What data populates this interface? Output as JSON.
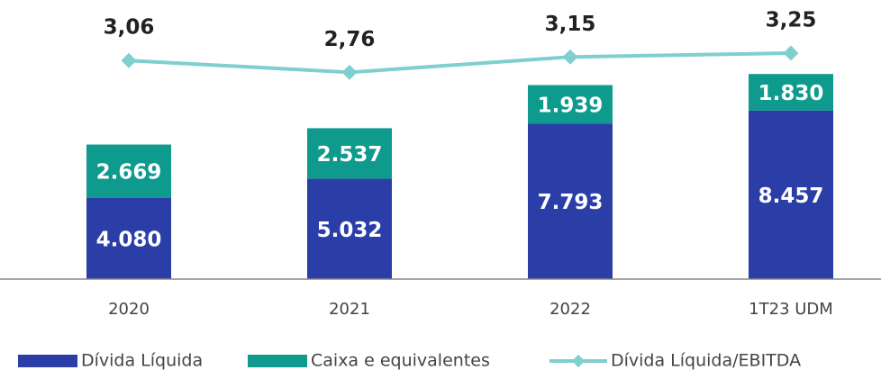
{
  "chart_data": {
    "type": "bar",
    "stacked": true,
    "categories": [
      "2020",
      "2021",
      "2022",
      "1T23 UDM"
    ],
    "series": [
      {
        "name": "Dívida Líquida",
        "color": "#2b3ea8",
        "values": [
          4080,
          5032,
          7793,
          8457
        ],
        "value_labels": [
          "4.080",
          "5.032",
          "7.793",
          "8.457"
        ]
      },
      {
        "name": "Caixa e equivalentes",
        "color": "#0e9a8c",
        "values": [
          2669,
          2537,
          1939,
          1830
        ],
        "value_labels": [
          "2.669",
          "2.537",
          "1.939",
          "1.830"
        ]
      },
      {
        "name": "Dívida Líquida/EBITDA",
        "type": "line",
        "axis": "y2",
        "color": "#7fcfcf",
        "values": [
          3.06,
          2.76,
          3.15,
          3.25
        ],
        "value_labels": [
          "3,06",
          "2,76",
          "3,15",
          "3,25"
        ]
      }
    ],
    "ylim": [
      0,
      14000
    ],
    "y2lim": [
      -2.5,
      4.6
    ]
  }
}
